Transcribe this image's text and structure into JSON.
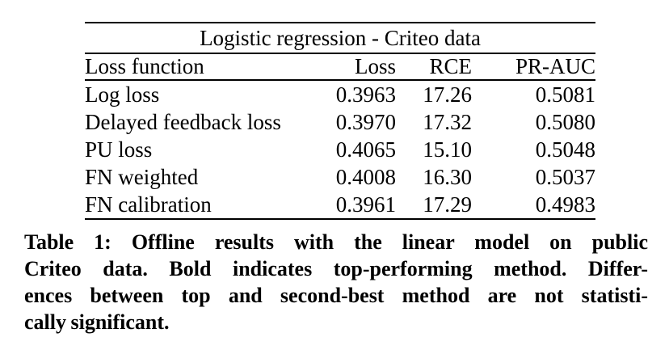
{
  "table": {
    "title": "Logistic regression - Criteo data",
    "columns": [
      "Loss function",
      "Loss",
      "RCE",
      "PR-AUC"
    ],
    "rows": [
      [
        "Log loss",
        "0.3963",
        "17.26",
        "0.5081"
      ],
      [
        "Delayed feedback loss",
        "0.3970",
        "17.32",
        "0.5080"
      ],
      [
        "PU loss",
        "0.4065",
        "15.10",
        "0.5048"
      ],
      [
        "FN weighted",
        "0.4008",
        "16.30",
        "0.5037"
      ],
      [
        "FN calibration",
        "0.3961",
        "17.29",
        "0.4983"
      ]
    ],
    "bold_cells": [
      [
        0,
        3
      ],
      [
        1,
        2
      ],
      [
        4,
        1
      ]
    ]
  },
  "caption": {
    "lines": [
      "Table 1: Offline results with the linear model on public",
      "Criteo data. Bold indicates top-performing method. Differ-",
      "ences between top and second-best method are not statisti-",
      "cally significant."
    ]
  },
  "colors": {
    "background": "#ffffff",
    "text": "#000000",
    "rule": "#000000"
  }
}
